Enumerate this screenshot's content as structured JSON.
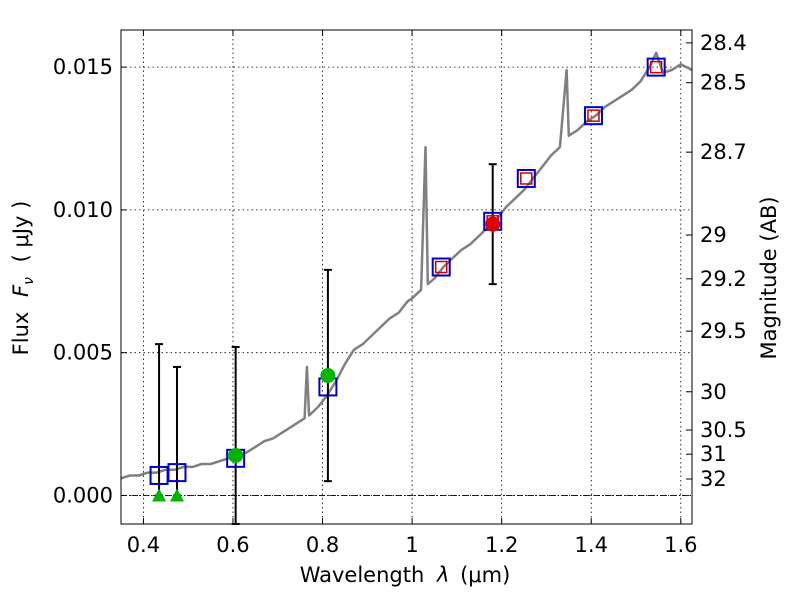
{
  "chart_data": {
    "type": "scatter",
    "xlabel_prefix": "Wavelength",
    "xlabel_sym": "λ",
    "xlabel_unit": "(μm)",
    "ylabel_prefix": "Flux",
    "ylabel_sym": "F",
    "ylabel_sub": "ν",
    "ylabel_unit": "( μJy )",
    "y2label": "Magnitude (AB)",
    "xlim": [
      0.35,
      1.625
    ],
    "ylim": [
      -0.001,
      0.0163
    ],
    "grid": true,
    "x_ticks": [
      {
        "value": 0.4,
        "label": "0.4"
      },
      {
        "value": 0.6,
        "label": "0.6"
      },
      {
        "value": 0.8,
        "label": "0.8"
      },
      {
        "value": 1.0,
        "label": "1"
      },
      {
        "value": 1.2,
        "label": "1.2"
      },
      {
        "value": 1.4,
        "label": "1.4"
      },
      {
        "value": 1.6,
        "label": "1.6"
      }
    ],
    "y_ticks": [
      {
        "value": 0.0,
        "label": "0.000"
      },
      {
        "value": 0.005,
        "label": "0.005"
      },
      {
        "value": 0.01,
        "label": "0.010"
      },
      {
        "value": 0.015,
        "label": "0.015"
      }
    ],
    "mag_ticks": [
      {
        "value": 28.4,
        "label": "28.4"
      },
      {
        "value": 28.5,
        "label": "28.5"
      },
      {
        "value": 28.7,
        "label": "28.7"
      },
      {
        "value": 29,
        "label": "29"
      },
      {
        "value": 29.2,
        "label": "29.2"
      },
      {
        "value": 29.5,
        "label": "29.5"
      },
      {
        "value": 30,
        "label": "30"
      },
      {
        "value": 30.5,
        "label": "30.5"
      },
      {
        "value": 31,
        "label": "31"
      },
      {
        "value": 32,
        "label": "32"
      }
    ],
    "zero_line": 0.0,
    "colors": {
      "spectrum": "#808080",
      "model_box": "#0000cc",
      "model_box_inner": "#cc0000",
      "green": "#00b400",
      "red": "#dd0000",
      "errorbar": "#000000"
    },
    "spectrum": [
      [
        0.35,
        0.0006
      ],
      [
        0.37,
        0.0007
      ],
      [
        0.39,
        0.0007
      ],
      [
        0.41,
        0.0008
      ],
      [
        0.43,
        0.0008
      ],
      [
        0.45,
        0.0009
      ],
      [
        0.47,
        0.0009
      ],
      [
        0.49,
        0.001
      ],
      [
        0.51,
        0.001
      ],
      [
        0.53,
        0.0011
      ],
      [
        0.55,
        0.0011
      ],
      [
        0.57,
        0.0012
      ],
      [
        0.59,
        0.0013
      ],
      [
        0.61,
        0.0014
      ],
      [
        0.63,
        0.0015
      ],
      [
        0.65,
        0.0017
      ],
      [
        0.67,
        0.0019
      ],
      [
        0.69,
        0.002
      ],
      [
        0.71,
        0.0022
      ],
      [
        0.73,
        0.0024
      ],
      [
        0.75,
        0.0026
      ],
      [
        0.76,
        0.0027
      ],
      [
        0.765,
        0.0045
      ],
      [
        0.77,
        0.0028
      ],
      [
        0.79,
        0.0031
      ],
      [
        0.81,
        0.0035
      ],
      [
        0.83,
        0.004
      ],
      [
        0.85,
        0.0046
      ],
      [
        0.87,
        0.0051
      ],
      [
        0.89,
        0.0053
      ],
      [
        0.91,
        0.0056
      ],
      [
        0.93,
        0.0059
      ],
      [
        0.95,
        0.0062
      ],
      [
        0.97,
        0.0064
      ],
      [
        0.99,
        0.0068
      ],
      [
        1.0,
        0.0069
      ],
      [
        1.02,
        0.0072
      ],
      [
        1.03,
        0.0122
      ],
      [
        1.035,
        0.0074
      ],
      [
        1.05,
        0.0076
      ],
      [
        1.07,
        0.008
      ],
      [
        1.09,
        0.0083
      ],
      [
        1.11,
        0.0086
      ],
      [
        1.13,
        0.0088
      ],
      [
        1.15,
        0.0091
      ],
      [
        1.17,
        0.0094
      ],
      [
        1.19,
        0.0097
      ],
      [
        1.21,
        0.0101
      ],
      [
        1.23,
        0.0104
      ],
      [
        1.25,
        0.0107
      ],
      [
        1.27,
        0.0111
      ],
      [
        1.29,
        0.0115
      ],
      [
        1.31,
        0.0119
      ],
      [
        1.33,
        0.0122
      ],
      [
        1.345,
        0.0149
      ],
      [
        1.35,
        0.0126
      ],
      [
        1.37,
        0.0128
      ],
      [
        1.39,
        0.0131
      ],
      [
        1.41,
        0.0133
      ],
      [
        1.43,
        0.0136
      ],
      [
        1.45,
        0.0138
      ],
      [
        1.47,
        0.014
      ],
      [
        1.49,
        0.0142
      ],
      [
        1.51,
        0.0145
      ],
      [
        1.53,
        0.015
      ],
      [
        1.545,
        0.0155
      ],
      [
        1.56,
        0.0148
      ],
      [
        1.58,
        0.0149
      ],
      [
        1.6,
        0.0151
      ],
      [
        1.625,
        0.0149
      ]
    ],
    "model_boxes": [
      {
        "x": 0.435,
        "y": 0.0007,
        "inner": false
      },
      {
        "x": 0.475,
        "y": 0.0008,
        "inner": false
      },
      {
        "x": 0.606,
        "y": 0.0013,
        "inner": false
      },
      {
        "x": 0.812,
        "y": 0.0038,
        "inner": false
      },
      {
        "x": 1.065,
        "y": 0.008,
        "inner": true
      },
      {
        "x": 1.18,
        "y": 0.0096,
        "inner": true
      },
      {
        "x": 1.255,
        "y": 0.0111,
        "inner": true
      },
      {
        "x": 1.405,
        "y": 0.0133,
        "inner": true
      },
      {
        "x": 1.545,
        "y": 0.015,
        "inner": true
      }
    ],
    "upper_limits": [
      {
        "x": 0.435,
        "y": 0.0,
        "err_lo": 0.0,
        "err_hi": 0.0053
      },
      {
        "x": 0.475,
        "y": 0.0,
        "err_lo": 0.0,
        "err_hi": 0.0045
      }
    ],
    "detections": [
      {
        "x": 0.606,
        "y": 0.0014,
        "err_lo": -0.0025,
        "err_hi": 0.0052,
        "color": "green"
      },
      {
        "x": 0.812,
        "y": 0.0042,
        "err_lo": 0.0005,
        "err_hi": 0.0079,
        "color": "green"
      },
      {
        "x": 1.18,
        "y": 0.0095,
        "err_lo": 0.0074,
        "err_hi": 0.0116,
        "color": "red"
      }
    ]
  }
}
